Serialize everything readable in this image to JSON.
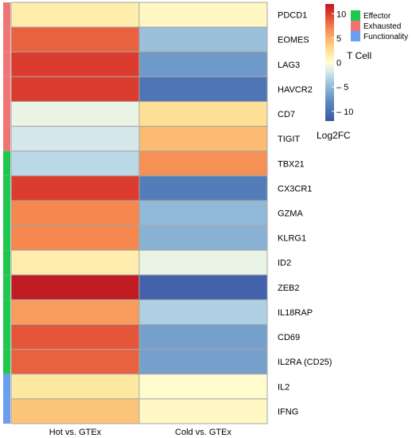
{
  "chart_data": {
    "type": "heatmap",
    "columns": [
      "Hot vs. GTEx",
      "Cold vs. GTEx"
    ],
    "rows": [
      "PDCD1",
      "EOMES",
      "LAG3",
      "HAVCR2",
      "CD7",
      "TIGIT",
      "TBX21",
      "CX3CR1",
      "GZMA",
      "KLRG1",
      "ID2",
      "ZEB2",
      "IL18RAP",
      "CD69",
      "IL2RA (CD25)",
      "IL2",
      "IFNG"
    ],
    "row_groups": [
      "Exhausted",
      "Exhausted",
      "Exhausted",
      "Exhausted",
      "Exhausted",
      "Exhausted",
      "Effector",
      "Effector",
      "Effector",
      "Effector",
      "Effector",
      "Effector",
      "Effector",
      "Effector",
      "Effector",
      "Functionality",
      "Functionality"
    ],
    "values": [
      [
        1.5,
        0.5
      ],
      [
        8.5,
        -4.5
      ],
      [
        10,
        -7
      ],
      [
        10,
        -9.5
      ],
      [
        -1,
        2.5
      ],
      [
        -2,
        4.5
      ],
      [
        -3,
        6.5
      ],
      [
        10,
        -9
      ],
      [
        7,
        -5
      ],
      [
        7,
        -5.5
      ],
      [
        1.5,
        -1
      ],
      [
        12.5,
        -11
      ],
      [
        6,
        -3.5
      ],
      [
        9,
        -6.5
      ],
      [
        8.5,
        -6.5
      ],
      [
        2,
        0
      ],
      [
        4,
        0.5
      ]
    ],
    "color_scale": {
      "min": -12,
      "max": 12,
      "stops": [
        {
          "value": -12,
          "color": "#3955a4"
        },
        {
          "value": -8,
          "color": "#5b8ac0"
        },
        {
          "value": -4,
          "color": "#a3c8e0"
        },
        {
          "value": -1.5,
          "color": "#e0f0ee"
        },
        {
          "value": 0,
          "color": "#fffdd0"
        },
        {
          "value": 2,
          "color": "#fde8a0"
        },
        {
          "value": 4,
          "color": "#fdc579"
        },
        {
          "value": 7,
          "color": "#f5874f"
        },
        {
          "value": 10,
          "color": "#dc3c2e"
        },
        {
          "value": 12,
          "color": "#c01a22"
        }
      ]
    },
    "colorbar": {
      "title": "Log2FC",
      "ticks": [
        {
          "value": 10,
          "label": "10"
        },
        {
          "value": 5,
          "label": "5"
        },
        {
          "value": 0,
          "label": "0"
        },
        {
          "value": -5,
          "label": "– 5"
        },
        {
          "value": -10,
          "label": "– 10"
        }
      ]
    },
    "annotation_legend": {
      "title": "T Cell",
      "items": [
        {
          "label": "Effector",
          "color": "#1ec84f"
        },
        {
          "label": "Exhausted",
          "color": "#f07474"
        },
        {
          "label": "Functionality",
          "color": "#6b9ef0"
        }
      ]
    },
    "cell_border_color": "#a6a6a6"
  }
}
